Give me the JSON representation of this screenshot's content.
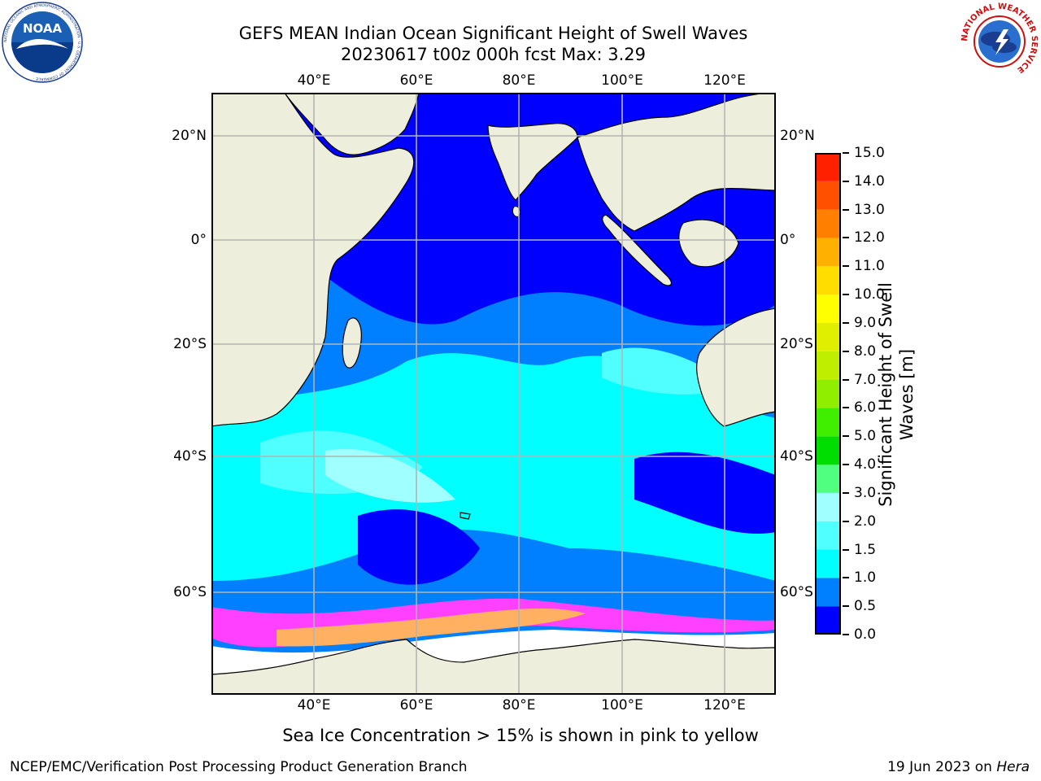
{
  "title": {
    "line1": "GEFS MEAN Indian Ocean Significant Height of Swell Waves",
    "line2": "20230617 t00z 000h fcst   Max: 3.29"
  },
  "map": {
    "lon_ticks": [
      "40°E",
      "60°E",
      "80°E",
      "100°E",
      "120°E"
    ],
    "lat_ticks": [
      "20°N",
      "0°",
      "20°S",
      "40°S",
      "60°S"
    ],
    "colors": {
      "land": "#eeeedc",
      "grid": "#b4b4b4",
      "ice_pink": "#ff40ff",
      "ice_orange": "#ffb060",
      "ice_yellow": "#ffd080"
    }
  },
  "colorbar": {
    "label_line1": "Significant Height of Swell",
    "label_line2": "Waves [m]",
    "ticks": [
      "0.0",
      "0.5",
      "1.0",
      "1.5",
      "2.0",
      "3.0",
      "4.0",
      "5.0",
      "6.0",
      "7.0",
      "8.0",
      "9.0",
      "10.0",
      "11.0",
      "12.0",
      "13.0",
      "14.0",
      "15.0"
    ],
    "colors": [
      "#0000ff",
      "#0080ff",
      "#00ffff",
      "#50ffff",
      "#a0ffff",
      "#50ff80",
      "#00dd00",
      "#40ee00",
      "#90ee00",
      "#c0ee00",
      "#e0ee00",
      "#ffff00",
      "#ffdd00",
      "#ffb000",
      "#ff8000",
      "#ff5000",
      "#ff2000"
    ]
  },
  "note": "Sea Ice Concentration > 15% is shown in pink to yellow",
  "footer": {
    "left": "NCEP/EMC/Verification Post Processing Product Generation Branch",
    "right_date": "19 Jun 2023 on ",
    "right_host": "Hera"
  },
  "logos": {
    "noaa_text": "NOAA",
    "noaa_ring": "NATIONAL OCEANIC AND ATMOSPHERIC ADMINISTRATION · U.S. DEPARTMENT OF COMMERCE ·",
    "nws_ring": "NATIONAL WEATHER SERVICE"
  }
}
